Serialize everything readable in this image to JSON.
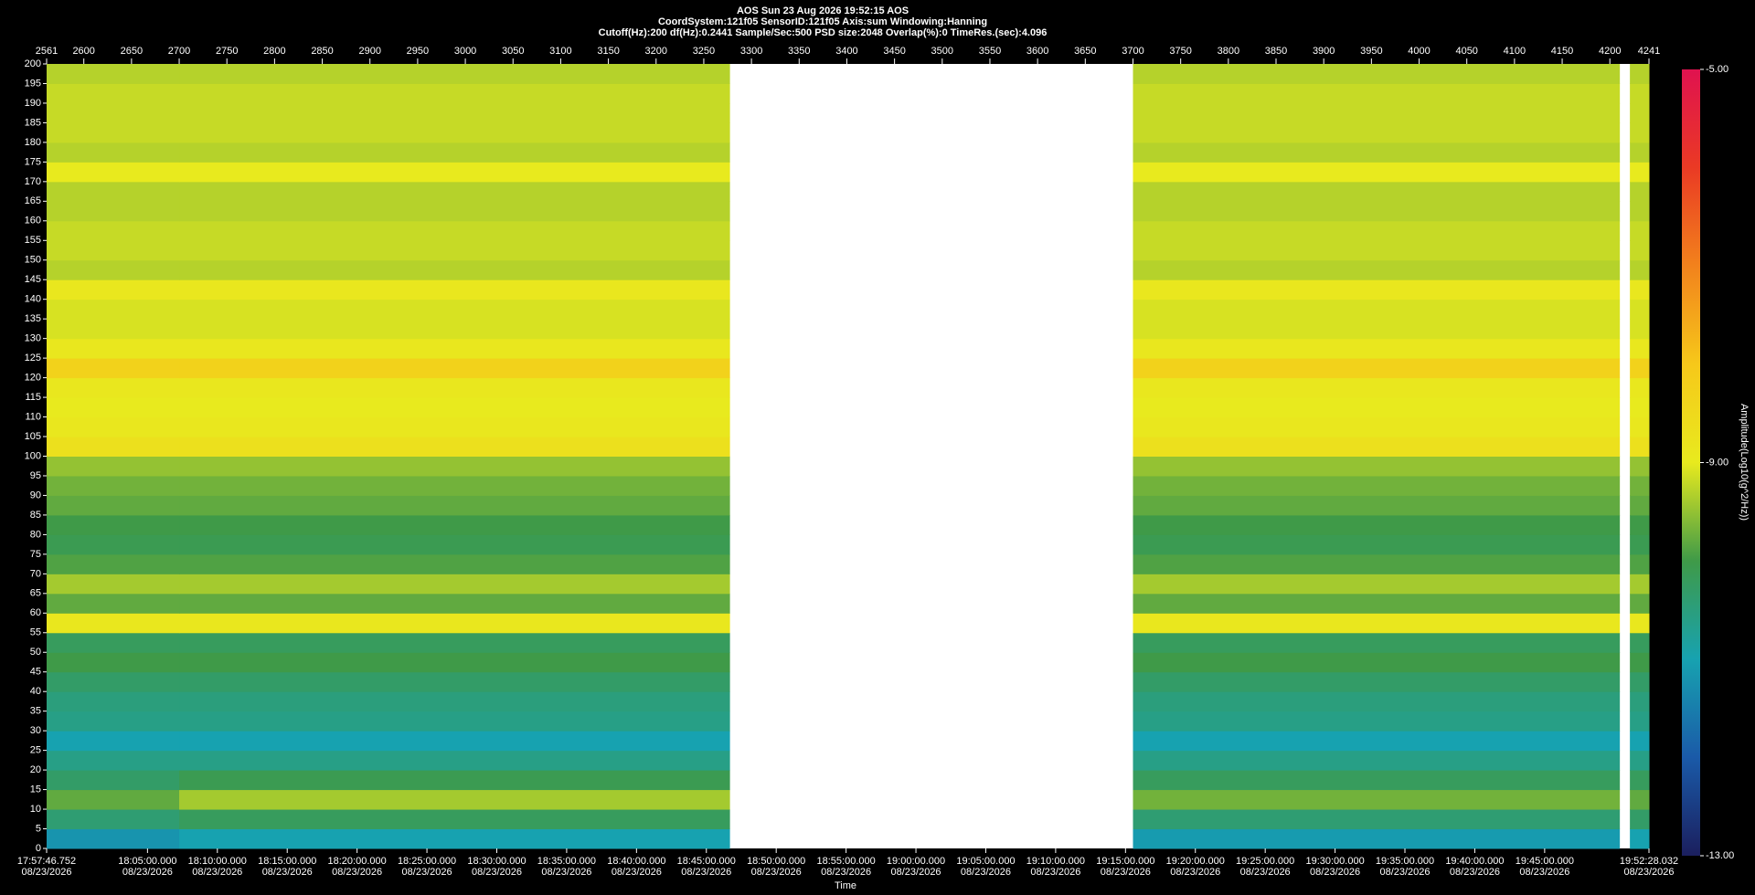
{
  "chart_data": {
    "type": "heatmap",
    "title": "AOS  Sun 23 Aug 2026 19:52:15  AOS",
    "subtitle_lines": [
      "CoordSystem:121f05   SensorID:121f05   Axis:sum   Windowing:Hanning",
      "Cutoff(Hz):200   df(Hz):0.2441   Sample/Sec:500   PSD size:2048   Overlap(%):0   TimeRes.(sec):4.096"
    ],
    "xlabel": "Time",
    "colorbar_label": "Amplitude(Log10(g^2/Hz))",
    "xlim": [
      2561,
      4241
    ],
    "xticks": [
      2561,
      2600,
      2650,
      2700,
      2750,
      2800,
      2850,
      2900,
      2950,
      3000,
      3050,
      3100,
      3150,
      3200,
      3250,
      3300,
      3350,
      3400,
      3450,
      3500,
      3550,
      3600,
      3650,
      3700,
      3750,
      3800,
      3850,
      3900,
      3950,
      4000,
      4050,
      4100,
      4150,
      4200,
      4241
    ],
    "time_ticks": [
      {
        "value": 2561,
        "label": "17:57:46.752",
        "date": "08/23/2026"
      },
      {
        "value": 2666.77,
        "label": "18:05:00.000",
        "date": "08/23/2026"
      },
      {
        "value": 2740.01,
        "label": "18:10:00.000",
        "date": "08/23/2026"
      },
      {
        "value": 2813.26,
        "label": "18:15:00.000",
        "date": "08/23/2026"
      },
      {
        "value": 2886.5,
        "label": "18:20:00.000",
        "date": "08/23/2026"
      },
      {
        "value": 2959.74,
        "label": "18:25:00.000",
        "date": "08/23/2026"
      },
      {
        "value": 3032.98,
        "label": "18:30:00.000",
        "date": "08/23/2026"
      },
      {
        "value": 3106.23,
        "label": "18:35:00.000",
        "date": "08/23/2026"
      },
      {
        "value": 3179.47,
        "label": "18:40:00.000",
        "date": "08/23/2026"
      },
      {
        "value": 3252.71,
        "label": "18:45:00.000",
        "date": "08/23/2026"
      },
      {
        "value": 3325.95,
        "label": "18:50:00.000",
        "date": "08/23/2026"
      },
      {
        "value": 3399.2,
        "label": "18:55:00.000",
        "date": "08/23/2026"
      },
      {
        "value": 3472.44,
        "label": "19:00:00.000",
        "date": "08/23/2026"
      },
      {
        "value": 3545.68,
        "label": "19:05:00.000",
        "date": "08/23/2026"
      },
      {
        "value": 3618.92,
        "label": "19:10:00.000",
        "date": "08/23/2026"
      },
      {
        "value": 3692.17,
        "label": "19:15:00.000",
        "date": "08/23/2026"
      },
      {
        "value": 3765.41,
        "label": "19:20:00.000",
        "date": "08/23/2026"
      },
      {
        "value": 3838.65,
        "label": "19:25:00.000",
        "date": "08/23/2026"
      },
      {
        "value": 3911.89,
        "label": "19:30:00.000",
        "date": "08/23/2026"
      },
      {
        "value": 3985.13,
        "label": "19:35:00.000",
        "date": "08/23/2026"
      },
      {
        "value": 4058.38,
        "label": "19:40:00.000",
        "date": "08/23/2026"
      },
      {
        "value": 4131.62,
        "label": "19:45:00.000",
        "date": "08/23/2026"
      },
      {
        "value": 4241,
        "label": "19:52:28.032",
        "date": "08/23/2026"
      }
    ],
    "ylim": [
      0,
      200
    ],
    "yticks": [
      0,
      5,
      10,
      15,
      20,
      25,
      30,
      35,
      40,
      45,
      50,
      55,
      60,
      65,
      70,
      75,
      80,
      85,
      90,
      95,
      100,
      105,
      110,
      115,
      120,
      125,
      130,
      135,
      140,
      145,
      150,
      155,
      160,
      165,
      170,
      175,
      180,
      185,
      190,
      195,
      200
    ],
    "x": [
      2561,
      2700,
      3277,
      3700,
      4210,
      4221,
      4241
    ],
    "y": [
      0,
      5,
      10,
      15,
      20,
      25,
      30,
      35,
      40,
      45,
      50,
      55,
      60,
      65,
      70,
      75,
      80,
      85,
      90,
      95,
      100,
      105,
      110,
      115,
      120,
      125,
      130,
      135,
      140,
      145,
      150,
      155,
      160,
      165,
      170,
      175,
      180,
      185,
      190,
      195,
      200
    ],
    "z": [
      [
        -11.2,
        -11.0,
        null,
        -11.1,
        null,
        -11.0
      ],
      [
        -10.4,
        -10.2,
        null,
        -10.4,
        null,
        -10.3
      ],
      [
        -9.8,
        -9.4,
        null,
        -9.7,
        null,
        -9.8
      ],
      [
        -10.3,
        -10.1,
        null,
        -10.2,
        null,
        -10.2
      ],
      [
        -10.6,
        -10.6,
        null,
        -10.6,
        null,
        -10.6
      ],
      [
        -11.0,
        -11.0,
        null,
        -11.0,
        null,
        -11.0
      ],
      [
        -10.6,
        -10.6,
        null,
        -10.6,
        null,
        -10.6
      ],
      [
        -10.5,
        -10.5,
        null,
        -10.5,
        null,
        -10.5
      ],
      [
        -10.3,
        -10.3,
        null,
        -10.3,
        null,
        -10.3
      ],
      [
        -10.0,
        -10.0,
        null,
        -10.0,
        null,
        -10.0
      ],
      [
        -10.2,
        -10.2,
        null,
        -10.2,
        null,
        -10.2
      ],
      [
        -8.9,
        -8.9,
        null,
        -8.9,
        null,
        -8.9
      ],
      [
        -9.8,
        -9.8,
        null,
        -9.8,
        null,
        -9.8
      ],
      [
        -9.4,
        -9.4,
        null,
        -9.4,
        null,
        -9.4
      ],
      [
        -9.9,
        -9.9,
        null,
        -9.9,
        null,
        -9.9
      ],
      [
        -10.1,
        -10.1,
        null,
        -10.1,
        null,
        -10.1
      ],
      [
        -10.0,
        -10.0,
        null,
        -10.0,
        null,
        -10.0
      ],
      [
        -9.8,
        -9.8,
        null,
        -9.8,
        null,
        -9.8
      ],
      [
        -9.7,
        -9.7,
        null,
        -9.7,
        null,
        -9.7
      ],
      [
        -9.5,
        -9.5,
        null,
        -9.5,
        null,
        -9.5
      ],
      [
        -8.7,
        -8.7,
        null,
        -8.7,
        null,
        -8.7
      ],
      [
        -8.9,
        -8.9,
        null,
        -8.9,
        null,
        -8.9
      ],
      [
        -9.0,
        -9.0,
        null,
        -9.0,
        null,
        -9.0
      ],
      [
        -8.9,
        -8.9,
        null,
        -8.9,
        null,
        -8.9
      ],
      [
        -8.3,
        -8.3,
        null,
        -8.3,
        null,
        -8.3
      ],
      [
        -8.9,
        -8.9,
        null,
        -8.9,
        null,
        -8.9
      ],
      [
        -9.1,
        -9.1,
        null,
        -9.1,
        null,
        -9.1
      ],
      [
        -9.1,
        -9.1,
        null,
        -9.1,
        null,
        -9.1
      ],
      [
        -8.9,
        -8.9,
        null,
        -8.9,
        null,
        -8.9
      ],
      [
        -9.3,
        -9.3,
        null,
        -9.3,
        null,
        -9.3
      ],
      [
        -9.2,
        -9.2,
        null,
        -9.2,
        null,
        -9.2
      ],
      [
        -9.2,
        -9.2,
        null,
        -9.2,
        null,
        -9.2
      ],
      [
        -9.3,
        -9.3,
        null,
        -9.3,
        null,
        -9.3
      ],
      [
        -9.3,
        -9.3,
        null,
        -9.3,
        null,
        -9.3
      ],
      [
        -9.0,
        -9.0,
        null,
        -9.0,
        null,
        -9.0
      ],
      [
        -9.3,
        -9.3,
        null,
        -9.3,
        null,
        -9.3
      ],
      [
        -9.2,
        -9.2,
        null,
        -9.2,
        null,
        -9.2
      ],
      [
        -9.2,
        -9.2,
        null,
        -9.2,
        null,
        -9.2
      ],
      [
        -9.2,
        -9.2,
        null,
        -9.2,
        null,
        -9.2
      ],
      [
        -9.3,
        -9.3,
        null,
        -9.3,
        null,
        -9.3
      ]
    ],
    "zlim": [
      -13,
      -5
    ],
    "zticks": [
      {
        "value": -5,
        "label": "-5.00"
      },
      {
        "value": -9,
        "label": "-9.00"
      },
      {
        "value": -13,
        "label": "-13.00"
      }
    ],
    "colors": [
      "#1b1f5e",
      "#1a5aa8",
      "#17a2b0",
      "#3f9a48",
      "#e8ea1e",
      "#f6c81a",
      "#f2821c",
      "#ea3a24",
      "#e0124f"
    ]
  }
}
